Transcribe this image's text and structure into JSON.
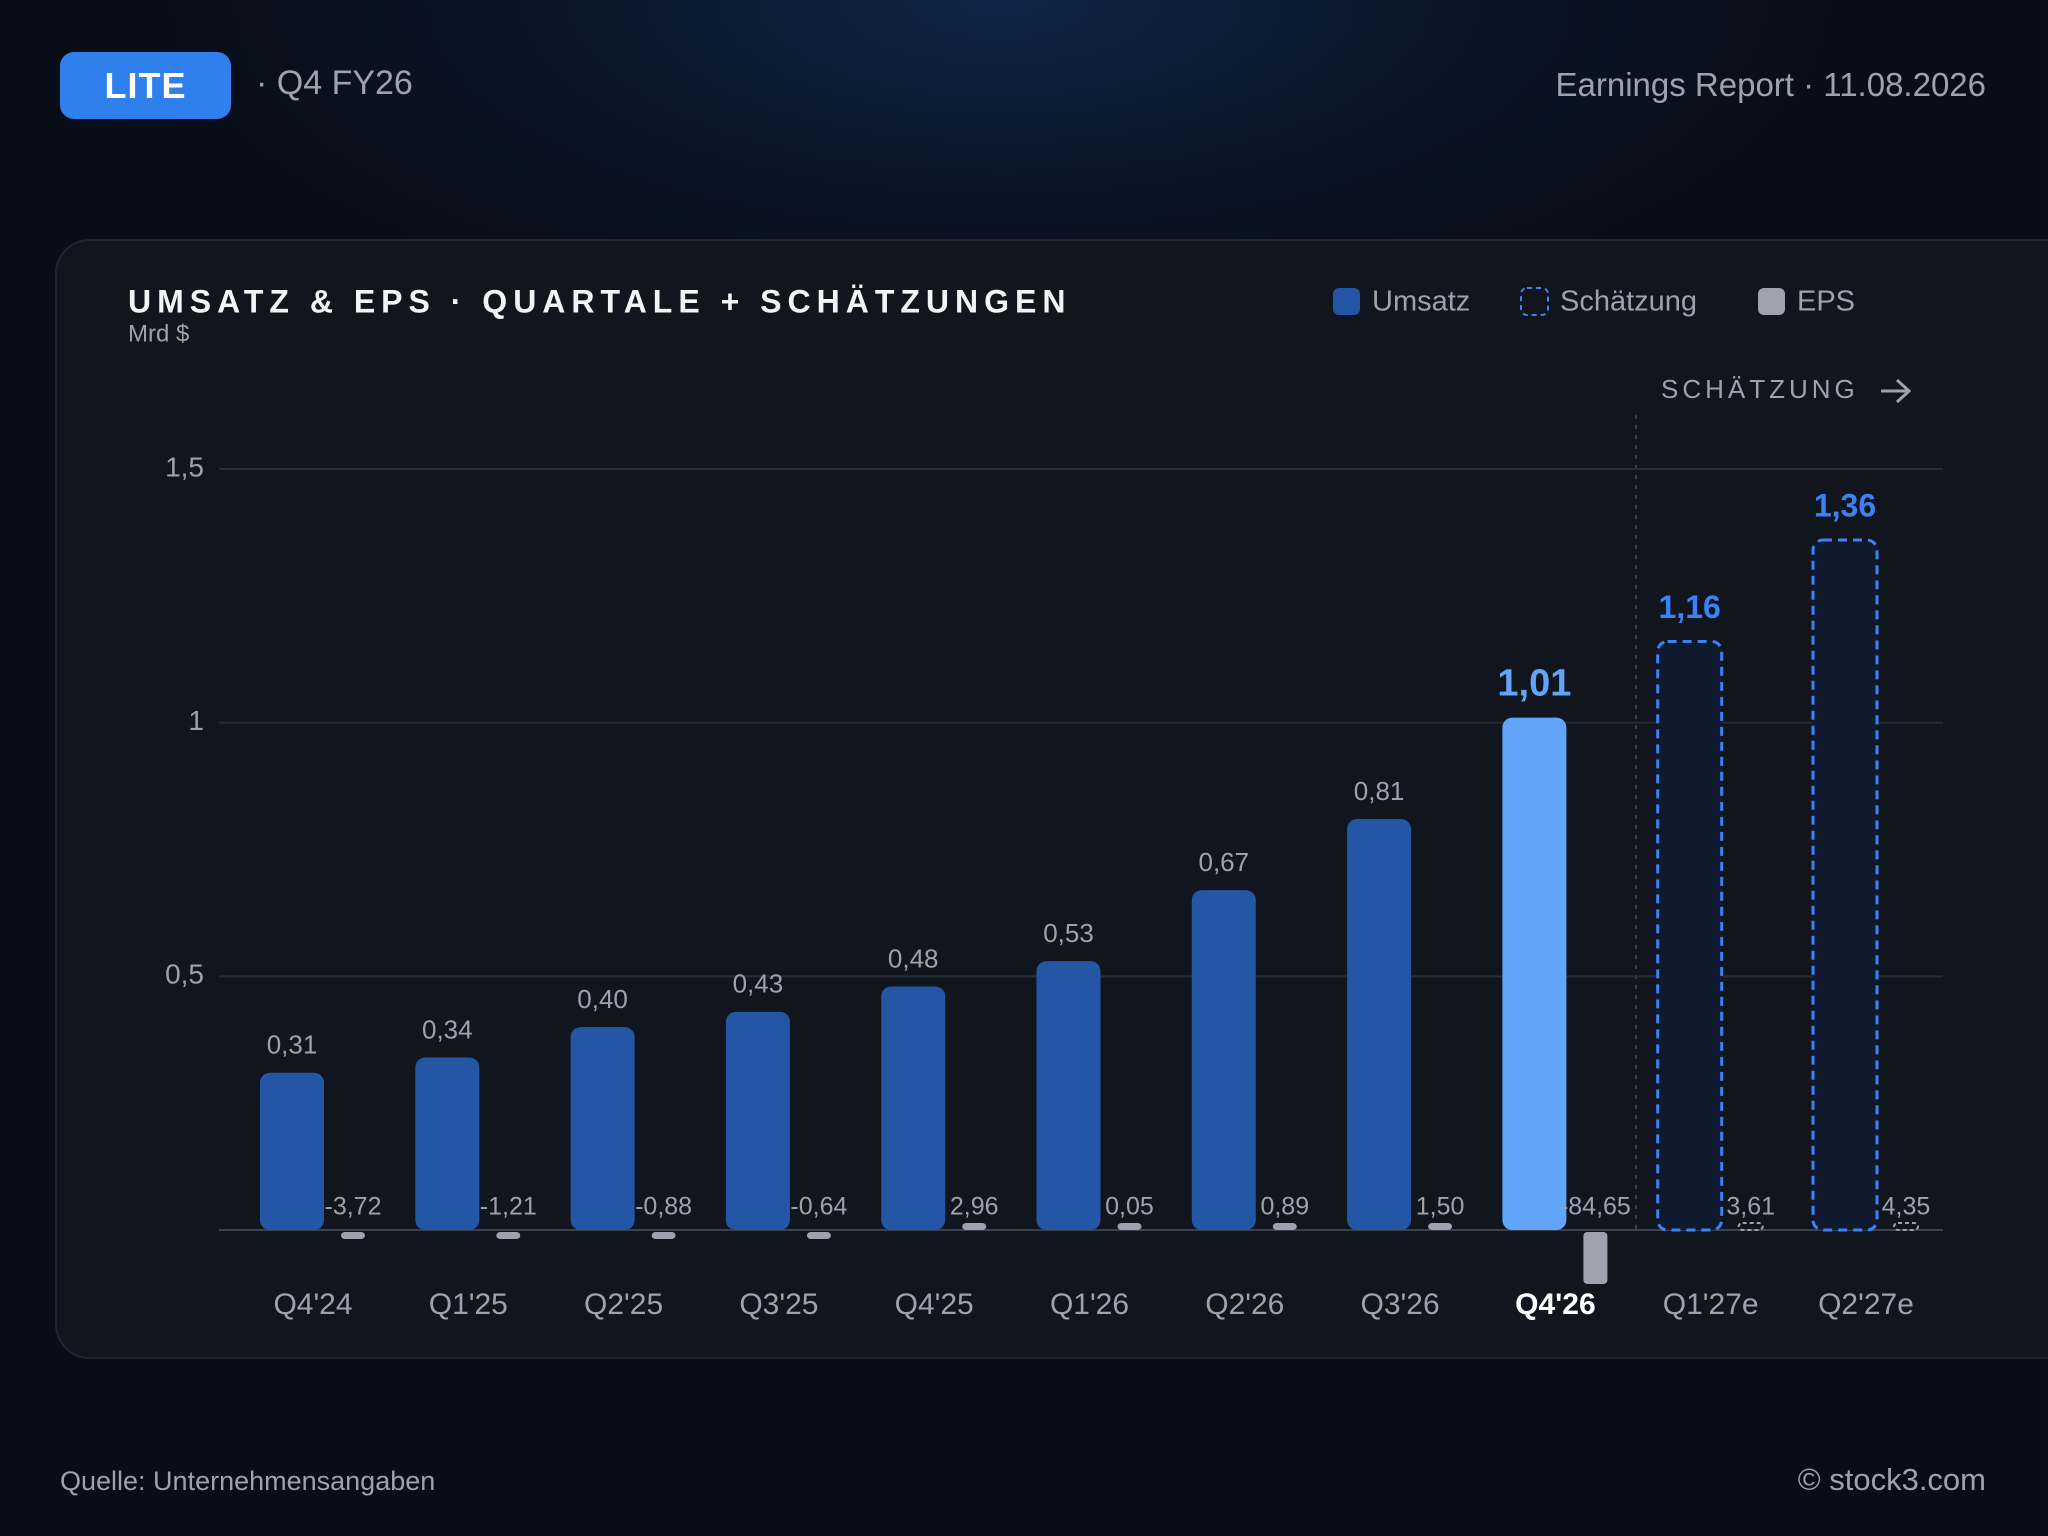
{
  "header": {
    "ticker": "LITE",
    "period": "· Q4 FY26",
    "report": "Earnings Report · 11.08.2026"
  },
  "footer": {
    "source": "Quelle: Unternehmensangaben",
    "copyright": "© stock3.com"
  },
  "chart_data": {
    "type": "bar",
    "title": "UMSATZ & EPS · QUARTALE + SCHÄTZUNGEN",
    "subtitle": "Mrd $",
    "annotation": "SCHÄTZUNG",
    "categories": [
      "Q4'24",
      "Q1'25",
      "Q2'25",
      "Q3'25",
      "Q4'25",
      "Q1'26",
      "Q2'26",
      "Q3'26",
      "Q4'26",
      "Q1'27e",
      "Q2'27e"
    ],
    "highlight_index": 8,
    "highlight_color": "#60a5fa",
    "series": [
      {
        "name": "Umsatz",
        "color": "#2456a6",
        "values": [
          0.31,
          0.34,
          0.4,
          0.43,
          0.48,
          0.53,
          0.67,
          0.81,
          1.01,
          null,
          null
        ],
        "value_labels": [
          "0,31",
          "0,34",
          "0,40",
          "0,43",
          "0,48",
          "0,53",
          "0,67",
          "0,81",
          "1,01",
          null,
          null
        ]
      },
      {
        "name": "Schätzung",
        "color": "#3b82f6",
        "dashed": true,
        "values": [
          null,
          null,
          null,
          null,
          null,
          null,
          null,
          null,
          null,
          1.16,
          1.36
        ],
        "value_labels": [
          null,
          null,
          null,
          null,
          null,
          null,
          null,
          null,
          null,
          "1,16",
          "1,36"
        ]
      },
      {
        "name": "EPS",
        "color": "#9ca3af",
        "values": [
          -3.72,
          -1.21,
          -0.88,
          -0.64,
          2.96,
          0.05,
          0.89,
          1.5,
          -84.65,
          3.61,
          4.35
        ],
        "value_labels": [
          "-3,72",
          "-1,21",
          "-0,88",
          "-0,64",
          "2,96",
          "0,05",
          "0,89",
          "1,50",
          "-84,65",
          "3,61",
          "4,35"
        ]
      }
    ],
    "ylim": [
      0,
      1.5
    ],
    "yticks": [
      {
        "value": 0.5,
        "label": "0,5"
      },
      1,
      {
        "value": 1.5,
        "label": "1,5"
      }
    ],
    "grid": true
  }
}
